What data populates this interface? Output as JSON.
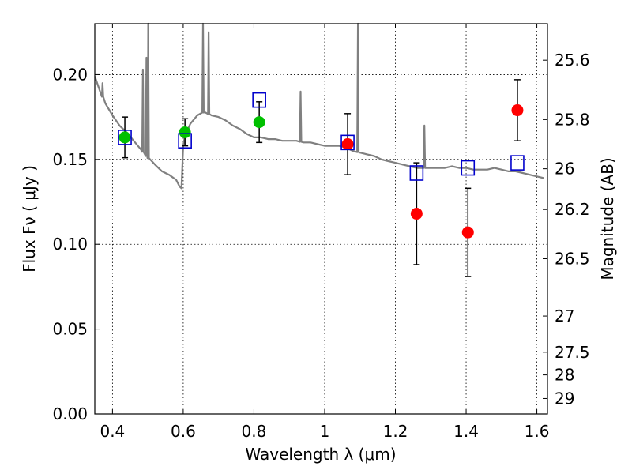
{
  "chart_data": {
    "type": "scatter",
    "xlabel": "Wavelength  λ (μm)",
    "ylabel": "Flux  Fν  ( μJy )",
    "ylabel_right": "Magnitude (AB)",
    "xlim": [
      0.35,
      1.63
    ],
    "ylim": [
      0.0,
      0.23
    ],
    "x_ticks": [
      0.4,
      0.6,
      0.8,
      1.0,
      1.2,
      1.4,
      1.6
    ],
    "x_tick_labels": [
      "0.4",
      "0.6",
      "0.8",
      "1",
      "1.2",
      "1.4",
      "1.6"
    ],
    "y_ticks": [
      0.0,
      0.05,
      0.1,
      0.15,
      0.2
    ],
    "y_tick_labels": [
      "0.00",
      "0.05",
      "0.10",
      "0.15",
      "0.20"
    ],
    "right_ticks": [
      {
        "label": "25.6",
        "flux": 0.2085
      },
      {
        "label": "25.8",
        "flux": 0.1735
      },
      {
        "label": "26",
        "flux": 0.1445
      },
      {
        "label": "26.2",
        "flux": 0.1205
      },
      {
        "label": "26.5",
        "flux": 0.0915
      },
      {
        "label": "27",
        "flux": 0.0577
      },
      {
        "label": "27.5",
        "flux": 0.0364
      },
      {
        "label": "28",
        "flux": 0.023
      },
      {
        "label": "29",
        "flux": 0.0091
      }
    ],
    "grid": true,
    "series": [
      {
        "marker": "circle",
        "color": "#00c000",
        "x": [
          0.435,
          0.605,
          0.815
        ],
        "y": [
          0.163,
          0.166,
          0.172
        ],
        "err": [
          0.012,
          0.008,
          0.012
        ]
      },
      {
        "marker": "circle",
        "color": "#ff0000",
        "x": [
          1.065,
          1.26,
          1.405,
          1.545
        ],
        "y": [
          0.159,
          0.118,
          0.107,
          0.179
        ],
        "err": [
          0.018,
          0.03,
          0.026,
          0.018
        ]
      },
      {
        "marker": "open-square",
        "color": "#0000cc",
        "x": [
          0.435,
          0.605,
          0.815,
          1.065,
          1.26,
          1.405,
          1.545
        ],
        "y": [
          0.163,
          0.161,
          0.185,
          0.16,
          0.142,
          0.145,
          0.148
        ]
      }
    ],
    "model_spectrum": {
      "color": "#808080",
      "x": [
        0.35,
        0.36,
        0.38,
        0.4,
        0.42,
        0.44,
        0.46,
        0.48,
        0.5,
        0.52,
        0.54,
        0.56,
        0.58,
        0.59,
        0.595,
        0.6,
        0.605,
        0.62,
        0.64,
        0.66,
        0.68,
        0.7,
        0.72,
        0.74,
        0.76,
        0.78,
        0.8,
        0.82,
        0.84,
        0.86,
        0.88,
        0.9,
        0.92,
        0.94,
        0.96,
        0.98,
        1.0,
        1.02,
        1.04,
        1.06,
        1.08,
        1.1,
        1.12,
        1.14,
        1.16,
        1.18,
        1.2,
        1.22,
        1.24,
        1.26,
        1.28,
        1.3,
        1.32,
        1.34,
        1.36,
        1.38,
        1.4,
        1.42,
        1.44,
        1.46,
        1.48,
        1.5,
        1.52,
        1.54,
        1.56,
        1.58,
        1.6,
        1.62
      ],
      "y": [
        0.199,
        0.193,
        0.183,
        0.176,
        0.17,
        0.166,
        0.161,
        0.156,
        0.151,
        0.147,
        0.143,
        0.141,
        0.138,
        0.134,
        0.133,
        0.158,
        0.164,
        0.171,
        0.176,
        0.178,
        0.176,
        0.175,
        0.173,
        0.17,
        0.168,
        0.165,
        0.163,
        0.163,
        0.162,
        0.162,
        0.161,
        0.161,
        0.161,
        0.16,
        0.16,
        0.159,
        0.158,
        0.158,
        0.158,
        0.157,
        0.155,
        0.154,
        0.153,
        0.152,
        0.15,
        0.149,
        0.148,
        0.147,
        0.146,
        0.145,
        0.145,
        0.145,
        0.145,
        0.145,
        0.146,
        0.145,
        0.145,
        0.144,
        0.144,
        0.144,
        0.145,
        0.144,
        0.143,
        0.143,
        0.142,
        0.141,
        0.14,
        0.139
      ],
      "emission_lines": [
        {
          "x": 0.372,
          "peak": 0.195
        },
        {
          "x": 0.486,
          "peak": 0.203
        },
        {
          "x": 0.496,
          "peak": 0.21
        },
        {
          "x": 0.501,
          "peak": 0.23
        },
        {
          "x": 0.656,
          "peak": 0.23
        },
        {
          "x": 0.672,
          "peak": 0.225
        },
        {
          "x": 0.932,
          "peak": 0.19
        },
        {
          "x": 1.094,
          "peak": 0.23
        },
        {
          "x": 1.282,
          "peak": 0.17
        }
      ]
    }
  }
}
